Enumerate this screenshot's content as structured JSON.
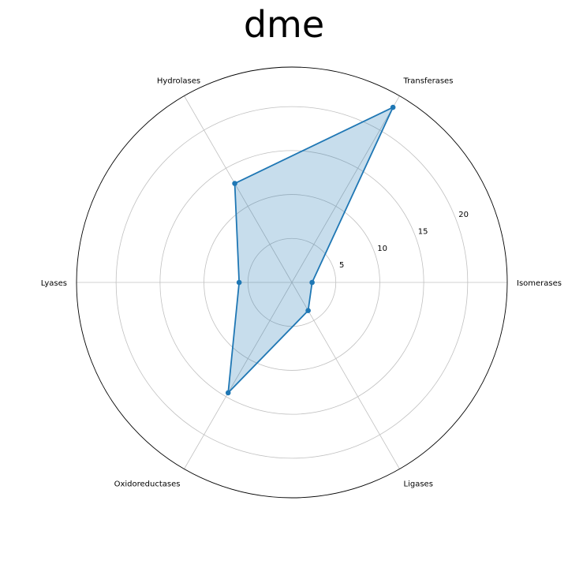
{
  "chart_data": {
    "type": "radar",
    "title": "dme",
    "categories": [
      "Isomerases",
      "Transferases",
      "Hydrolases",
      "Lyases",
      "Oxidoreductases",
      "Ligases"
    ],
    "series": [
      {
        "values": [
          2.3,
          23.0,
          13.0,
          6.0,
          14.5,
          3.7
        ]
      }
    ],
    "radial_ticks": [
      "5",
      "10",
      "15",
      "20"
    ],
    "radial_range": [
      0,
      24.5
    ],
    "grid": true,
    "colors": {
      "line": "#1f77b4",
      "fill": "#1f77b4",
      "grid": "#c0c0c0",
      "outline": "#000000"
    }
  }
}
